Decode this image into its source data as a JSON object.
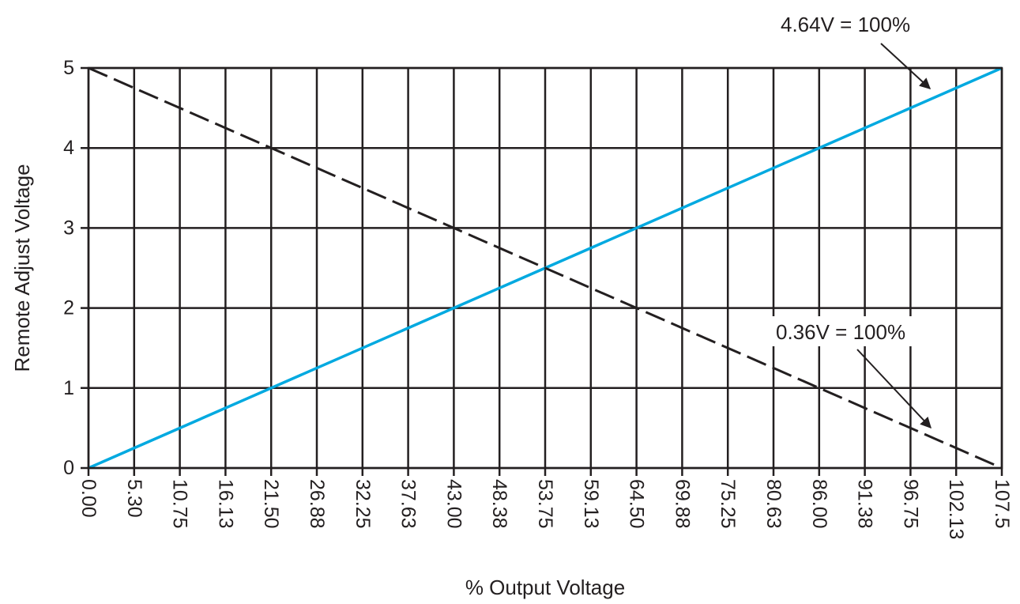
{
  "chart_data": {
    "type": "line",
    "title": "",
    "xlabel": "% Output Voltage",
    "ylabel": "Remote Adjust Voltage",
    "x_ticks": [
      "0.00",
      "5.30",
      "10.75",
      "16.13",
      "21.50",
      "26.88",
      "32.25",
      "37.63",
      "43.00",
      "48.38",
      "53.75",
      "59.13",
      "64.50",
      "69.88",
      "75.25",
      "80.63",
      "86.00",
      "91.38",
      "96.75",
      "102.13",
      "107.5"
    ],
    "y_ticks": [
      "0",
      "1",
      "2",
      "3",
      "4",
      "5"
    ],
    "xlim": [
      0,
      107.5
    ],
    "ylim": [
      0,
      5
    ],
    "grid": true,
    "series": [
      {
        "style": "solid",
        "color": "#00a9e0",
        "x": [
          0,
          107.5
        ],
        "y": [
          0,
          5
        ]
      },
      {
        "style": "dashed",
        "color": "#231f20",
        "x": [
          0,
          107.5
        ],
        "y": [
          5,
          0
        ]
      }
    ],
    "annotations": [
      {
        "text": "4.64V = 100%",
        "points_to": {
          "x": 100,
          "y": 4.64
        }
      },
      {
        "text": "0.36V = 100%",
        "points_to": {
          "x": 100,
          "y": 0.36
        }
      }
    ]
  }
}
